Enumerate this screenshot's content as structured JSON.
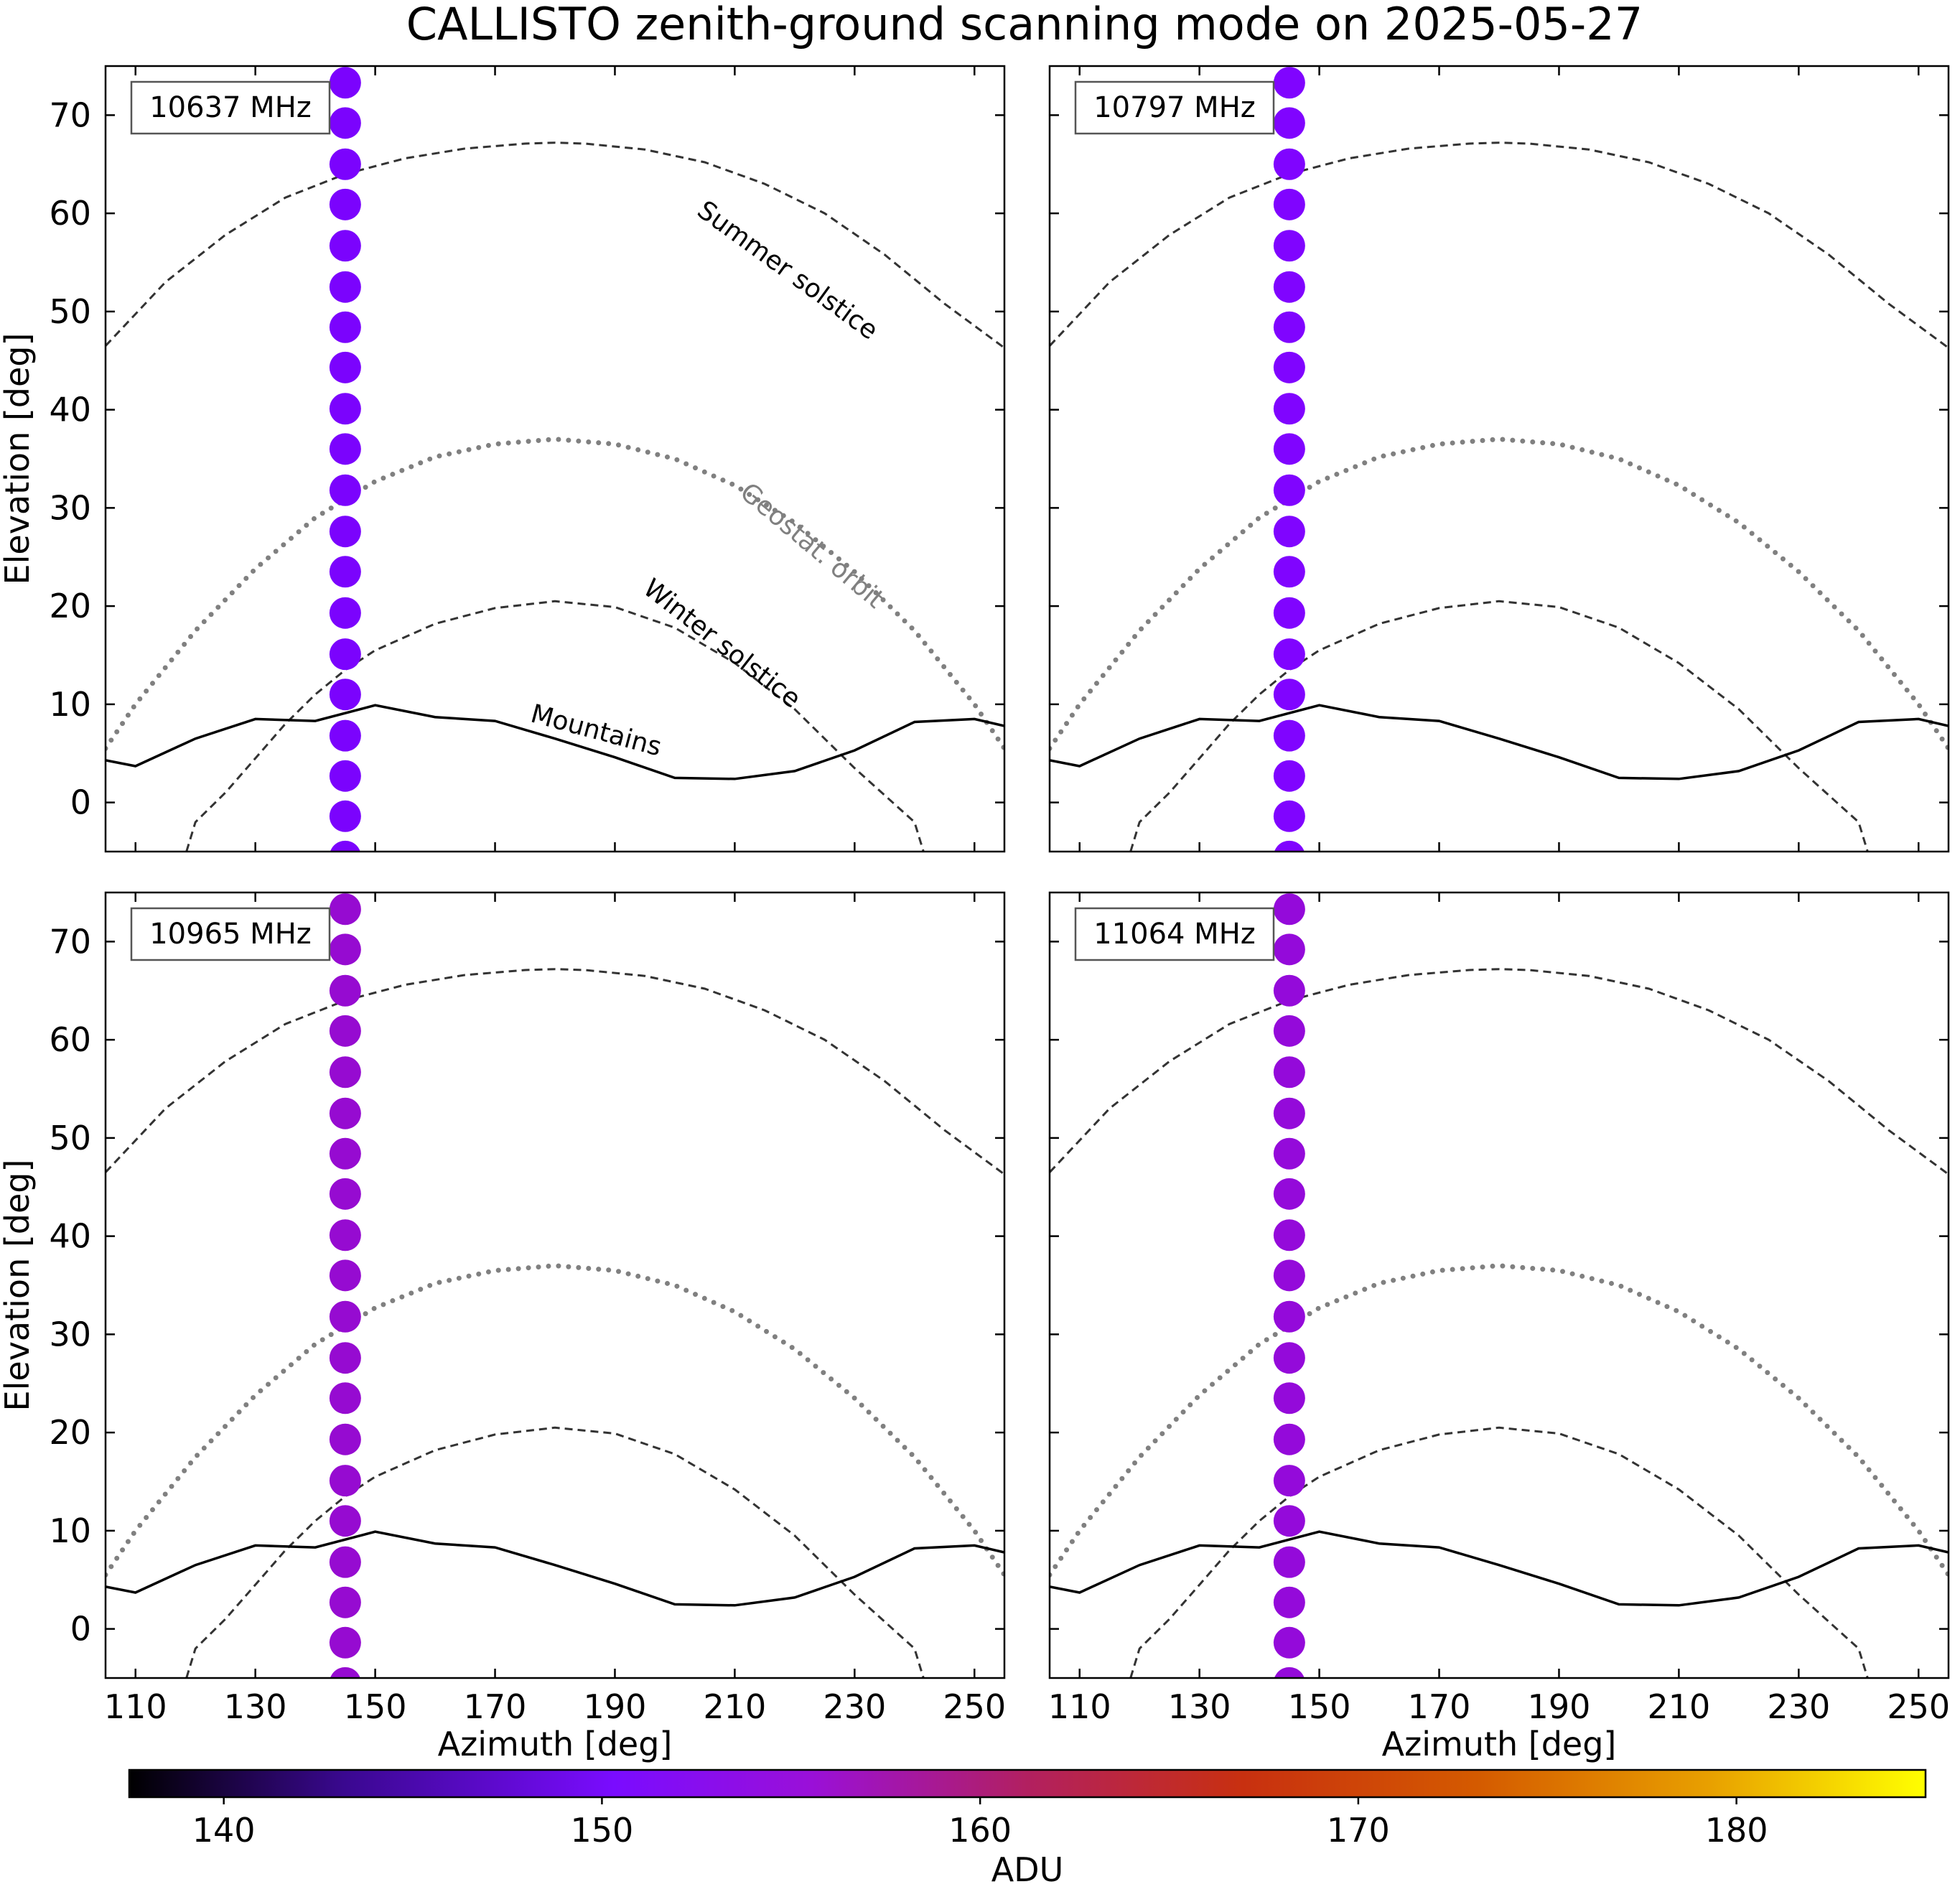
{
  "title": "CALLISTO zenith-ground scanning mode on 2025-05-27",
  "chart_data": {
    "type": "scatter",
    "title": "CALLISTO zenith-ground scanning mode on 2025-05-27",
    "xlabel": "Azimuth [deg]",
    "ylabel": "Elevation [deg]",
    "xlim": [
      105,
      255
    ],
    "ylim": [
      -5,
      75
    ],
    "xticks": [
      110,
      130,
      150,
      170,
      190,
      210,
      230,
      250
    ],
    "yticks": [
      0,
      10,
      20,
      30,
      40,
      50,
      60,
      70
    ],
    "grid": false,
    "panels": [
      {
        "label": "10637 MHz",
        "adu": 148.5
      },
      {
        "label": "10797 MHz",
        "adu": 149.5
      },
      {
        "label": "10965 MHz",
        "adu": 154.0
      },
      {
        "label": "11064 MHz",
        "adu": 153.5
      }
    ],
    "scan": {
      "azimuth": 145,
      "elevations": [
        -5.5,
        -1.4,
        2.7,
        6.8,
        11.0,
        15.1,
        19.3,
        23.5,
        27.6,
        31.8,
        36.0,
        40.1,
        44.3,
        48.4,
        52.5,
        56.7,
        60.9,
        65.0,
        69.2,
        73.3
      ]
    },
    "reference_curves": [
      {
        "name": "Summer solstice",
        "style": "dashed",
        "color": "#333333",
        "azimuth": [
          105,
          115,
          125,
          135,
          145,
          155,
          165,
          175,
          180,
          185,
          195,
          205,
          215,
          225,
          235,
          245,
          255
        ],
        "elevation": [
          46.5,
          53.0,
          57.8,
          61.6,
          64.0,
          65.6,
          66.6,
          67.1,
          67.2,
          67.1,
          66.5,
          65.2,
          63.0,
          60.0,
          55.8,
          50.8,
          46.3
        ]
      },
      {
        "name": "Geostat. orbit",
        "style": "dotted",
        "color": "#808080",
        "azimuth": [
          105,
          110,
          120,
          130,
          140,
          150,
          160,
          170,
          180,
          190,
          200,
          210,
          220,
          230,
          240,
          250,
          255
        ],
        "elevation": [
          5.5,
          10.0,
          17.5,
          23.8,
          29.0,
          32.7,
          35.2,
          36.5,
          37.0,
          36.5,
          35.0,
          32.3,
          28.5,
          23.5,
          17.5,
          10.0,
          5.5
        ]
      },
      {
        "name": "Winter solstice",
        "style": "dashed",
        "color": "#333333",
        "azimuth": [
          118.5,
          120,
          125,
          130,
          135,
          140,
          145,
          150,
          160,
          170,
          180,
          190,
          200,
          210,
          220,
          230,
          240,
          241.5
        ],
        "elevation": [
          -5,
          -2.0,
          1.0,
          4.5,
          8.0,
          11.0,
          13.5,
          15.5,
          18.2,
          19.8,
          20.5,
          19.9,
          17.8,
          14.2,
          9.5,
          3.5,
          -2.0,
          -5
        ]
      },
      {
        "name": "Mountains",
        "style": "solid",
        "color": "#000000",
        "azimuth": [
          105,
          110,
          120,
          130,
          140,
          150,
          160,
          170,
          180,
          190,
          200,
          210,
          220,
          230,
          240,
          250,
          255
        ],
        "elevation": [
          4.3,
          3.7,
          6.5,
          8.5,
          8.3,
          9.9,
          8.7,
          8.3,
          6.5,
          4.6,
          2.5,
          2.4,
          3.2,
          5.3,
          8.2,
          8.5,
          7.8
        ]
      }
    ],
    "annotations": [
      {
        "text": "Summer solstice",
        "azimuth": 218,
        "elevation": 53.5,
        "rotation": 36,
        "color": "#000000"
      },
      {
        "text": "Geostat. orbit",
        "azimuth": 222,
        "elevation": 25.5,
        "rotation": 40,
        "color": "#808080"
      },
      {
        "text": "Winter solstice",
        "azimuth": 207,
        "elevation": 15.5,
        "rotation": 38,
        "color": "#000000"
      },
      {
        "text": "Mountains",
        "azimuth": 186.5,
        "elevation": 6.5,
        "rotation": 15,
        "color": "#000000"
      }
    ],
    "colorbar": {
      "label": "ADU",
      "colormap": "gnuplot",
      "range": [
        137.5,
        185
      ],
      "ticks": [
        140,
        150,
        160,
        170,
        180
      ]
    }
  }
}
